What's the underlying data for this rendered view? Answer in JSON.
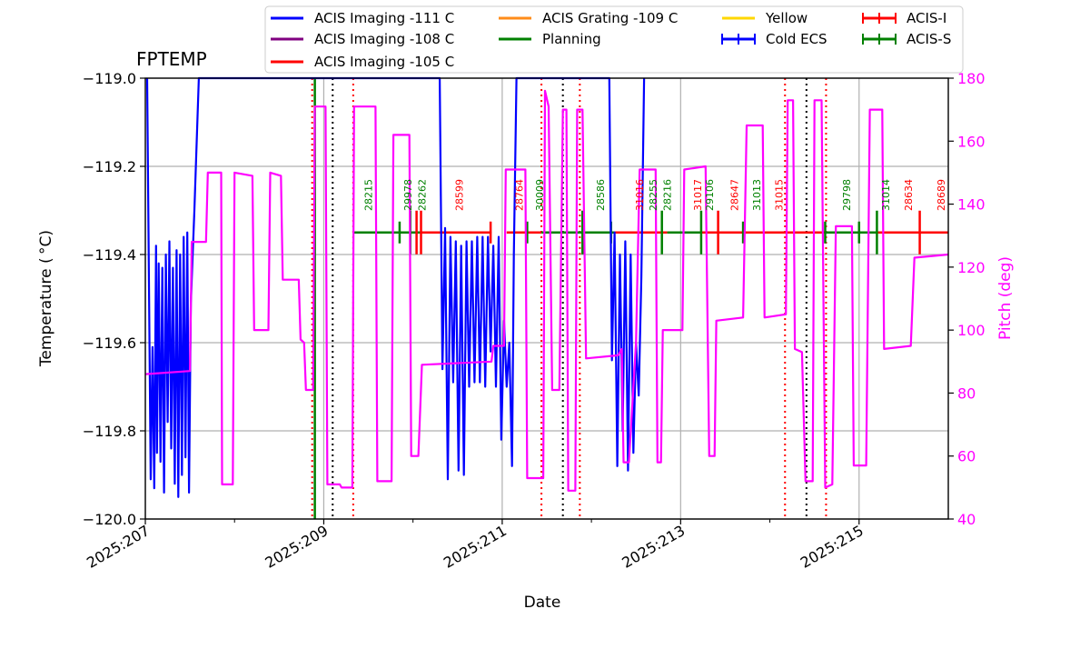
{
  "chart_data": {
    "type": "line",
    "title": "FPTEMP",
    "xlabel": "Date",
    "ylabel": "Temperature ($^\\circ$C)",
    "ylabel_display": "Temperature ( °C)",
    "y2label": "Pitch (deg)",
    "xlim": [
      207,
      216.0
    ],
    "ylim": [
      -120.0,
      -119.0
    ],
    "y2lim": [
      40,
      180
    ],
    "grid": true,
    "legend_placement": "top (above plot, 4 columns)",
    "x_tick_values": [
      207,
      209,
      211,
      213,
      215
    ],
    "x_ticks": [
      "2025:207",
      "2025:209",
      "2025:211",
      "2025:213",
      "2025:215"
    ],
    "y_ticks": [
      "−119.0",
      "−119.2",
      "−119.4",
      "−119.6",
      "−119.8",
      "−120.0"
    ],
    "y_tick_values": [
      -119.0,
      -119.2,
      -119.4,
      -119.6,
      -119.8,
      -120.0
    ],
    "y2_ticks": [
      "180",
      "160",
      "140",
      "120",
      "100",
      "80",
      "60",
      "40"
    ],
    "y2_tick_values": [
      180,
      160,
      140,
      120,
      100,
      80,
      60,
      40
    ],
    "colors": {
      "fptemp": "#0000ff",
      "pitch": "#ff00ff",
      "acis_i": "#ff0000",
      "acis_s": "#008000",
      "limit_111": "#0000ff",
      "limit_108": "#800080",
      "limit_105": "#ff0000",
      "limit_109": "#ff8c1a",
      "planning": "#008000",
      "yellow": "#ffd700",
      "grid": "#b0b0b0"
    },
    "legend": [
      {
        "label": "ACIS Imaging -111 C",
        "color": "#0000ff",
        "kind": "line"
      },
      {
        "label": "ACIS Imaging -108 C",
        "color": "#800080",
        "kind": "line"
      },
      {
        "label": "ACIS Imaging -105 C",
        "color": "#ff0000",
        "kind": "line"
      },
      {
        "label": "ACIS Grating -109 C",
        "color": "#ff8c1a",
        "kind": "line"
      },
      {
        "label": "Planning",
        "color": "#008000",
        "kind": "line"
      },
      {
        "label": "Yellow",
        "color": "#ffd700",
        "kind": "line"
      },
      {
        "label": "Cold ECS",
        "color": "#0000ff",
        "kind": "errorbar"
      },
      {
        "label": "ACIS-I",
        "color": "#ff0000",
        "kind": "errorbar"
      },
      {
        "label": "ACIS-S",
        "color": "#008000",
        "kind": "errorbar"
      }
    ],
    "series": [
      {
        "name": "FPTEMP",
        "axis": "left",
        "points": [
          [
            207.02,
            -119.0
          ],
          [
            207.06,
            -119.91
          ],
          [
            207.08,
            -119.61
          ],
          [
            207.1,
            -119.93
          ],
          [
            207.12,
            -119.38
          ],
          [
            207.13,
            -119.85
          ],
          [
            207.15,
            -119.42
          ],
          [
            207.17,
            -119.87
          ],
          [
            207.19,
            -119.43
          ],
          [
            207.21,
            -119.94
          ],
          [
            207.23,
            -119.4
          ],
          [
            207.25,
            -119.78
          ],
          [
            207.27,
            -119.37
          ],
          [
            207.29,
            -119.84
          ],
          [
            207.31,
            -119.43
          ],
          [
            207.33,
            -119.92
          ],
          [
            207.35,
            -119.39
          ],
          [
            207.37,
            -119.95
          ],
          [
            207.39,
            -119.4
          ],
          [
            207.41,
            -119.9
          ],
          [
            207.43,
            -119.36
          ],
          [
            207.45,
            -119.86
          ],
          [
            207.47,
            -119.35
          ],
          [
            207.49,
            -119.94
          ],
          [
            207.51,
            -119.51
          ],
          [
            207.55,
            -119.3
          ],
          [
            207.6,
            -119.0
          ],
          [
            210.3,
            -119.0
          ],
          [
            210.33,
            -119.66
          ],
          [
            210.36,
            -119.34
          ],
          [
            210.39,
            -119.91
          ],
          [
            210.42,
            -119.36
          ],
          [
            210.45,
            -119.69
          ],
          [
            210.48,
            -119.37
          ],
          [
            210.51,
            -119.89
          ],
          [
            210.54,
            -119.38
          ],
          [
            210.57,
            -119.9
          ],
          [
            210.6,
            -119.37
          ],
          [
            210.63,
            -119.7
          ],
          [
            210.66,
            -119.37
          ],
          [
            210.69,
            -119.69
          ],
          [
            210.72,
            -119.36
          ],
          [
            210.75,
            -119.69
          ],
          [
            210.78,
            -119.36
          ],
          [
            210.81,
            -119.7
          ],
          [
            210.84,
            -119.36
          ],
          [
            210.87,
            -119.62
          ],
          [
            210.9,
            -119.38
          ],
          [
            210.93,
            -119.7
          ],
          [
            210.96,
            -119.36
          ],
          [
            210.99,
            -119.82
          ],
          [
            211.02,
            -119.55
          ],
          [
            211.05,
            -119.7
          ],
          [
            211.08,
            -119.6
          ],
          [
            211.11,
            -119.88
          ],
          [
            211.13,
            -119.4
          ],
          [
            211.16,
            -119.0
          ],
          [
            212.2,
            -119.0
          ],
          [
            212.23,
            -119.64
          ],
          [
            212.26,
            -119.35
          ],
          [
            212.29,
            -119.88
          ],
          [
            212.32,
            -119.4
          ],
          [
            212.35,
            -119.8
          ],
          [
            212.38,
            -119.37
          ],
          [
            212.41,
            -119.89
          ],
          [
            212.44,
            -119.4
          ],
          [
            212.47,
            -119.85
          ],
          [
            212.5,
            -119.6
          ],
          [
            212.53,
            -119.72
          ],
          [
            212.56,
            -119.45
          ],
          [
            212.59,
            -119.0
          ]
        ]
      },
      {
        "name": "Pitch",
        "axis": "right",
        "points": [
          [
            207.0,
            86
          ],
          [
            207.5,
            87
          ],
          [
            207.52,
            128
          ],
          [
            207.68,
            128
          ],
          [
            207.7,
            150
          ],
          [
            207.85,
            150
          ],
          [
            207.86,
            51
          ],
          [
            207.98,
            51
          ],
          [
            208.0,
            150
          ],
          [
            208.2,
            149
          ],
          [
            208.22,
            100
          ],
          [
            208.38,
            100
          ],
          [
            208.4,
            150
          ],
          [
            208.52,
            149
          ],
          [
            208.54,
            116
          ],
          [
            208.72,
            116
          ],
          [
            208.74,
            97
          ],
          [
            208.78,
            96
          ],
          [
            208.8,
            81
          ],
          [
            208.88,
            81
          ],
          [
            208.9,
            171
          ],
          [
            209.02,
            171
          ],
          [
            209.04,
            51
          ],
          [
            209.18,
            51
          ],
          [
            209.2,
            50
          ],
          [
            209.32,
            50
          ],
          [
            209.34,
            171
          ],
          [
            209.58,
            171
          ],
          [
            209.6,
            52
          ],
          [
            209.76,
            52
          ],
          [
            209.78,
            162
          ],
          [
            209.96,
            162
          ],
          [
            209.98,
            60
          ],
          [
            210.06,
            60
          ],
          [
            210.1,
            89
          ],
          [
            210.88,
            90
          ],
          [
            210.9,
            95
          ],
          [
            211.02,
            95
          ],
          [
            211.04,
            151
          ],
          [
            211.26,
            151
          ],
          [
            211.28,
            53
          ],
          [
            211.46,
            53
          ],
          [
            211.48,
            176
          ],
          [
            211.52,
            171
          ],
          [
            211.56,
            81
          ],
          [
            211.64,
            81
          ],
          [
            211.68,
            170
          ],
          [
            211.72,
            170
          ],
          [
            211.74,
            49
          ],
          [
            211.82,
            49
          ],
          [
            211.84,
            170
          ],
          [
            211.9,
            170
          ],
          [
            211.94,
            91
          ],
          [
            212.3,
            92
          ],
          [
            212.34,
            94
          ],
          [
            212.36,
            58
          ],
          [
            212.42,
            58
          ],
          [
            212.5,
            96
          ],
          [
            212.54,
            151
          ],
          [
            212.72,
            151
          ],
          [
            212.74,
            58
          ],
          [
            212.78,
            58
          ],
          [
            212.8,
            100
          ],
          [
            213.02,
            100
          ],
          [
            213.04,
            151
          ],
          [
            213.28,
            152
          ],
          [
            213.32,
            60
          ],
          [
            213.38,
            60
          ],
          [
            213.4,
            103
          ],
          [
            213.7,
            104
          ],
          [
            213.74,
            165
          ],
          [
            213.92,
            165
          ],
          [
            213.94,
            104
          ],
          [
            214.18,
            105
          ],
          [
            214.2,
            173
          ],
          [
            214.26,
            173
          ],
          [
            214.28,
            94
          ],
          [
            214.36,
            93
          ],
          [
            214.4,
            52
          ],
          [
            214.48,
            52
          ],
          [
            214.5,
            173
          ],
          [
            214.58,
            173
          ],
          [
            214.62,
            50
          ],
          [
            214.7,
            51
          ],
          [
            214.74,
            133
          ],
          [
            214.92,
            133
          ],
          [
            214.94,
            57
          ],
          [
            215.08,
            57
          ],
          [
            215.12,
            170
          ],
          [
            215.26,
            170
          ],
          [
            215.28,
            94
          ],
          [
            215.58,
            95
          ],
          [
            215.62,
            123
          ],
          [
            216.0,
            124
          ]
        ]
      }
    ],
    "vlines": [
      {
        "x": 208.87,
        "color": "#ff0000",
        "style": "dotted"
      },
      {
        "x": 208.9,
        "color": "#008000",
        "style": "solid"
      },
      {
        "x": 209.1,
        "color": "#000000",
        "style": "dotted"
      },
      {
        "x": 209.33,
        "color": "#ff0000",
        "style": "dotted"
      },
      {
        "x": 211.44,
        "color": "#ff0000",
        "style": "dotted"
      },
      {
        "x": 211.68,
        "color": "#000000",
        "style": "dotted"
      },
      {
        "x": 211.87,
        "color": "#ff0000",
        "style": "dotted"
      },
      {
        "x": 214.17,
        "color": "#ff0000",
        "style": "dotted"
      },
      {
        "x": 214.41,
        "color": "#000000",
        "style": "dotted"
      },
      {
        "x": 214.63,
        "color": "#ff0000",
        "style": "dotted"
      }
    ],
    "obsid_segments": [
      {
        "start": 209.33,
        "end": 209.8,
        "instrument": "ACIS-S"
      },
      {
        "start": 209.8,
        "end": 210.08,
        "instrument": "ACIS-S"
      },
      {
        "start": 210.08,
        "end": 210.88,
        "instrument": "ACIS-I"
      },
      {
        "start": 211.05,
        "end": 211.44,
        "instrument": "ACIS-I"
      },
      {
        "start": 211.44,
        "end": 211.9,
        "instrument": "ACIS-S"
      },
      {
        "start": 211.9,
        "end": 212.26,
        "instrument": "ACIS-S"
      },
      {
        "start": 212.26,
        "end": 212.85,
        "instrument": "ACIS-I"
      },
      {
        "start": 212.85,
        "end": 213.22,
        "instrument": "ACIS-S"
      },
      {
        "start": 213.22,
        "end": 214.63,
        "instrument": "ACIS-I"
      },
      {
        "start": 214.63,
        "end": 215.2,
        "instrument": "ACIS-S"
      },
      {
        "start": 215.2,
        "end": 216.0,
        "instrument": "ACIS-I"
      }
    ],
    "obsid_ticks": [
      {
        "x": 209.85,
        "instrument": "ACIS-S",
        "height": "small"
      },
      {
        "x": 209.97,
        "instrument": "ACIS-S",
        "height": "tall"
      },
      {
        "x": 210.04,
        "instrument": "ACIS-I",
        "height": "tall"
      },
      {
        "x": 210.09,
        "instrument": "ACIS-I",
        "height": "tall"
      },
      {
        "x": 210.87,
        "instrument": "ACIS-I",
        "height": "small"
      },
      {
        "x": 211.28,
        "instrument": "ACIS-S",
        "height": "small"
      },
      {
        "x": 211.9,
        "instrument": "ACIS-S",
        "height": "tall"
      },
      {
        "x": 212.22,
        "instrument": "ACIS-S",
        "height": "small"
      },
      {
        "x": 212.79,
        "instrument": "ACIS-S",
        "height": "tall"
      },
      {
        "x": 213.23,
        "instrument": "ACIS-S",
        "height": "tall"
      },
      {
        "x": 213.42,
        "instrument": "ACIS-I",
        "height": "tall"
      },
      {
        "x": 213.7,
        "instrument": "ACIS-S",
        "height": "small"
      },
      {
        "x": 214.62,
        "instrument": "ACIS-S",
        "height": "small"
      },
      {
        "x": 215.0,
        "instrument": "ACIS-S",
        "height": "small"
      },
      {
        "x": 215.2,
        "instrument": "ACIS-S",
        "height": "tall"
      },
      {
        "x": 215.68,
        "instrument": "ACIS-I",
        "height": "tall"
      }
    ],
    "obsid_labels": [
      {
        "text": "28215",
        "x": 209.5,
        "color": "#008000"
      },
      {
        "text": "29978",
        "x": 209.94,
        "color": "#008000"
      },
      {
        "text": "28262",
        "x": 210.1,
        "color": "#008000"
      },
      {
        "text": "28599",
        "x": 210.52,
        "color": "#ff0000"
      },
      {
        "text": "28764",
        "x": 211.19,
        "color": "#ff0000"
      },
      {
        "text": "30009",
        "x": 211.42,
        "color": "#008000"
      },
      {
        "text": "28586",
        "x": 212.1,
        "color": "#008000"
      },
      {
        "text": "31016",
        "x": 212.54,
        "color": "#ff0000"
      },
      {
        "text": "28255",
        "x": 212.69,
        "color": "#008000"
      },
      {
        "text": "28216",
        "x": 212.85,
        "color": "#008000"
      },
      {
        "text": "31017",
        "x": 213.19,
        "color": "#ff0000"
      },
      {
        "text": "29106",
        "x": 213.32,
        "color": "#008000"
      },
      {
        "text": "28647",
        "x": 213.6,
        "color": "#ff0000"
      },
      {
        "text": "31013",
        "x": 213.85,
        "color": "#008000"
      },
      {
        "text": "31015",
        "x": 214.1,
        "color": "#ff0000"
      },
      {
        "text": "29798",
        "x": 214.86,
        "color": "#008000"
      },
      {
        "text": "31014",
        "x": 215.3,
        "color": "#008000"
      },
      {
        "text": "28634",
        "x": 215.55,
        "color": "#ff0000"
      },
      {
        "text": "28689",
        "x": 215.92,
        "color": "#ff0000"
      }
    ]
  }
}
